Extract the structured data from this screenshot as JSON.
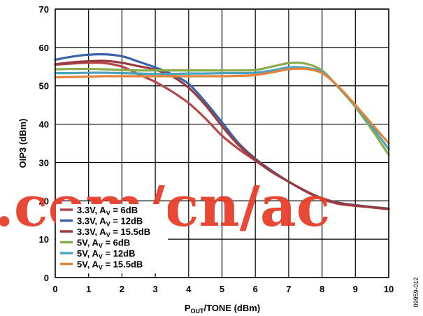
{
  "chart_data": {
    "type": "line",
    "title": "",
    "xlabel": "POUT/TONE (dBm)",
    "xlabel_main": "P",
    "xlabel_sub": "OUT",
    "xlabel_rest": "/TONE (dBm)",
    "ylabel": "OIP3 (dBm)",
    "xlim": [
      0,
      10
    ],
    "ylim": [
      0,
      70
    ],
    "xticks": [
      "0",
      "1",
      "2",
      "3",
      "4",
      "5",
      "6",
      "7",
      "8",
      "9",
      "10"
    ],
    "yticks": [
      "0",
      "10",
      "20",
      "30",
      "40",
      "50",
      "60",
      "70"
    ],
    "grid": true,
    "legend_position": "bottom-left",
    "series": [
      {
        "name": "3.3V, AV = 6dB",
        "label_main": "3.3V, A",
        "label_sub": "V",
        "label_rest": " = 6dB",
        "color": "#b5474a",
        "x": [
          0,
          0.5,
          1,
          1.5,
          2,
          2.5,
          3,
          3.5,
          4,
          4.5,
          5,
          5.5,
          6,
          6.5,
          7,
          7.5,
          8,
          8.5,
          9,
          9.5,
          10
        ],
        "y": [
          55.5,
          55.8,
          56,
          55.9,
          55,
          53,
          51,
          48.5,
          45.5,
          41.5,
          37,
          33.5,
          30.5,
          27.5,
          25,
          22.5,
          20.5,
          19.2,
          18.7,
          18.3,
          17.8
        ]
      },
      {
        "name": "3.3V, AV = 12dB",
        "label_main": "3.3V, A",
        "label_sub": "V",
        "label_rest": " = 12dB",
        "color": "#3a64a8",
        "x": [
          0,
          0.5,
          1,
          1.5,
          2,
          2.5,
          3,
          3.5,
          4,
          4.5,
          5,
          5.5,
          6,
          6.5,
          7,
          7.5,
          8,
          8.5,
          9,
          9.5,
          10
        ],
        "y": [
          56.8,
          57.6,
          58.1,
          58.2,
          57.7,
          56.3,
          54.8,
          53,
          50.5,
          45.8,
          40.5,
          35,
          31,
          27.8,
          25,
          22.6,
          20.7,
          19.5,
          18.9,
          18.4,
          18
        ]
      },
      {
        "name": "3.3V, AV = 15.5dB",
        "label_main": "3.3V, A",
        "label_sub": "V",
        "label_rest": " = 15.5dB",
        "color": "#9a3a3e",
        "x": [
          0,
          0.5,
          1,
          1.5,
          2,
          2.5,
          3,
          3.5,
          4,
          4.5,
          5,
          5.5,
          6,
          6.5,
          7,
          7.5,
          8,
          8.5,
          9,
          9.5,
          10
        ],
        "y": [
          55.6,
          56.1,
          56.4,
          56.5,
          56,
          55.1,
          54.2,
          52.5,
          49.5,
          45,
          39.5,
          34.5,
          30.8,
          27.6,
          25,
          22.6,
          20.6,
          19.4,
          18.8,
          18.3,
          17.9
        ]
      },
      {
        "name": "5V, AV = 6dB",
        "label_main": "5V, A",
        "label_sub": "V",
        "label_rest": " = 6dB",
        "color": "#8aac4a",
        "x": [
          0,
          0.5,
          1,
          1.5,
          2,
          2.5,
          3,
          3.5,
          4,
          4.5,
          5,
          5.5,
          6,
          6.5,
          7,
          7.5,
          8,
          8.5,
          9,
          9.5,
          10
        ],
        "y": [
          54.3,
          54.4,
          54.4,
          54.3,
          54.1,
          54,
          54,
          54,
          54,
          54,
          54,
          54,
          54.1,
          55,
          55.9,
          55.8,
          54,
          49.5,
          44.5,
          38.5,
          32
        ]
      },
      {
        "name": "5V, AV = 12dB",
        "label_main": "5V, A",
        "label_sub": "V",
        "label_rest": " = 12dB",
        "color": "#4aa3bf",
        "x": [
          0,
          0.5,
          1,
          1.5,
          2,
          2.5,
          3,
          3.5,
          4,
          4.5,
          5,
          5.5,
          6,
          6.5,
          7,
          7.5,
          8,
          8.5,
          9,
          9.5,
          10
        ],
        "y": [
          53.3,
          53.3,
          53.4,
          53.4,
          53.3,
          53.2,
          53.1,
          53.1,
          53.2,
          53.2,
          53.3,
          53.3,
          53.4,
          54,
          54.8,
          54.7,
          53.6,
          49.6,
          44.8,
          39.3,
          33.5
        ]
      },
      {
        "name": "5V, AV = 15.5dB",
        "label_main": "5V, A",
        "label_sub": "V",
        "label_rest": " = 15.5dB",
        "color": "#e3843a",
        "x": [
          0,
          0.5,
          1,
          1.5,
          2,
          2.5,
          3,
          3.5,
          4,
          4.5,
          5,
          5.5,
          6,
          6.5,
          7,
          7.5,
          8,
          8.5,
          9,
          9.5,
          10
        ],
        "y": [
          52.2,
          52.3,
          52.4,
          52.5,
          52.5,
          52.5,
          52.5,
          52.5,
          52.5,
          52.5,
          52.5,
          52.6,
          52.8,
          53.5,
          54.3,
          54.4,
          53.3,
          49.7,
          45,
          40,
          35
        ]
      }
    ]
  },
  "watermark": ".com/cn/ac",
  "figure_id": "09959-012"
}
